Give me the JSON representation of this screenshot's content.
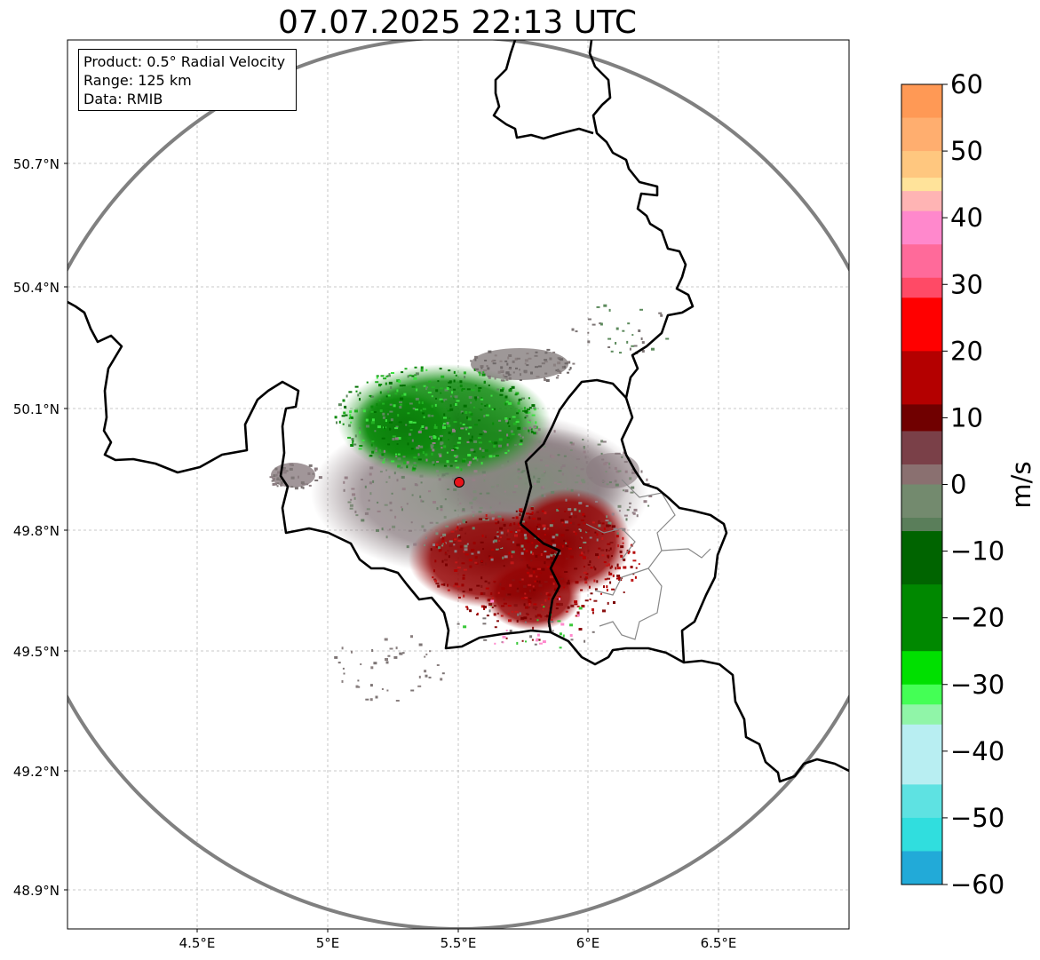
{
  "title": "07.07.2025 22:13 UTC",
  "info": {
    "product": "Product: 0.5° Radial Velocity",
    "range": "Range: 125 km",
    "source": "Data: RMIB"
  },
  "map": {
    "lon_range": [
      4.0,
      7.0
    ],
    "lat_range": [
      48.8,
      51.0
    ],
    "lat_ticks": [
      "50.7°N",
      "50.4°N",
      "50.1°N",
      "49.8°N",
      "49.5°N",
      "49.2°N",
      "48.9°N"
    ],
    "lon_ticks": [
      "4.5°E",
      "5°E",
      "5.5°E",
      "6°E",
      "6.5°E"
    ],
    "radar_site_color": "#e8141b",
    "range_ring_color": "#808080"
  },
  "colorbar": {
    "label": "m/s",
    "ticks": [
      "60",
      "50",
      "40",
      "30",
      "20",
      "10",
      "0",
      "−10",
      "−20",
      "−30",
      "−40",
      "−50",
      "−60"
    ],
    "stops": [
      {
        "v": 60,
        "c": "#ff9955"
      },
      {
        "v": 55,
        "c": "#ffae6f"
      },
      {
        "v": 50,
        "c": "#ffc77f"
      },
      {
        "v": 46,
        "c": "#ffe39a"
      },
      {
        "v": 44,
        "c": "#ffb4b4"
      },
      {
        "v": 41,
        "c": "#ff88cc"
      },
      {
        "v": 36,
        "c": "#ff6a9a"
      },
      {
        "v": 31,
        "c": "#ff4a66"
      },
      {
        "v": 28,
        "c": "#ff0000"
      },
      {
        "v": 20,
        "c": "#b40000"
      },
      {
        "v": 12,
        "c": "#700000"
      },
      {
        "v": 8,
        "c": "#7a4048"
      },
      {
        "v": 3,
        "c": "#8a7070"
      },
      {
        "v": 0,
        "c": "#738a6e"
      },
      {
        "v": -5,
        "c": "#5a7e5a"
      },
      {
        "v": -7,
        "c": "#006400"
      },
      {
        "v": -15,
        "c": "#008800"
      },
      {
        "v": -25,
        "c": "#00e000"
      },
      {
        "v": -30,
        "c": "#44ff55"
      },
      {
        "v": -33,
        "c": "#90f5a8"
      },
      {
        "v": -36,
        "c": "#b8eef2"
      },
      {
        "v": -45,
        "c": "#5ee2e2"
      },
      {
        "v": -50,
        "c": "#30dede"
      },
      {
        "v": -55,
        "c": "#22aad8"
      },
      {
        "v": -60,
        "c": "#2080c8"
      }
    ]
  }
}
